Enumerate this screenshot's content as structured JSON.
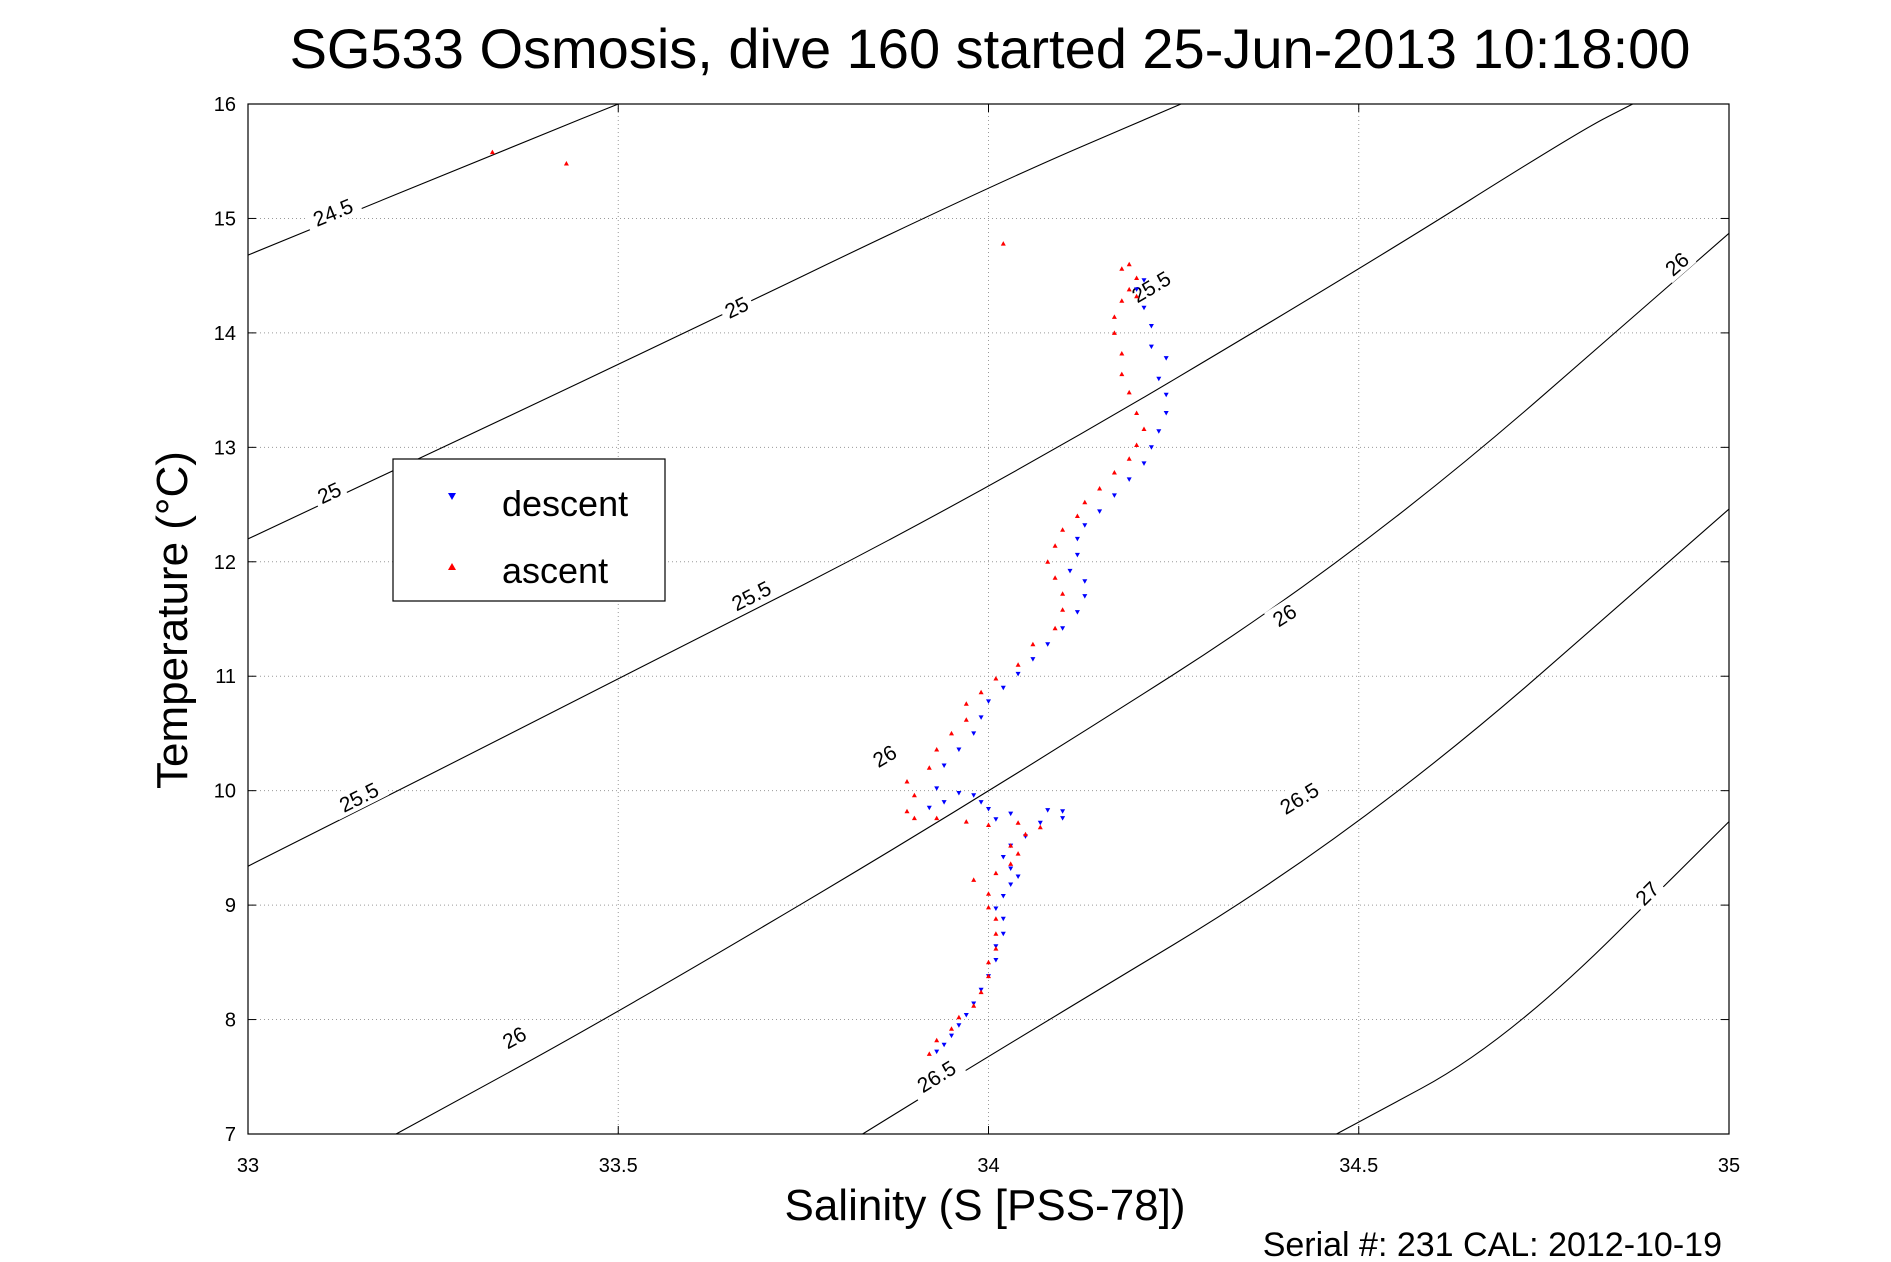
{
  "chart_data": {
    "type": "scatter",
    "title": "SG533 Osmosis, dive 160 started 25-Jun-2013 10:18:00",
    "xlabel": "Salinity (S [PSS-78])",
    "ylabel": "Temperature (°C)",
    "xlim": [
      33,
      35
    ],
    "ylim": [
      7,
      16
    ],
    "xticks": [
      33,
      33.5,
      34,
      34.5,
      35
    ],
    "xtick_labels": [
      "33",
      "33.5",
      "34",
      "34.5",
      "35"
    ],
    "yticks": [
      7,
      8,
      9,
      10,
      11,
      12,
      13,
      14,
      15,
      16
    ],
    "ytick_labels": [
      "7",
      "8",
      "9",
      "10",
      "11",
      "12",
      "13",
      "14",
      "15",
      "16"
    ],
    "grid": true,
    "legend": {
      "placement": "center-left",
      "entries": [
        "descent",
        "ascent"
      ]
    },
    "footer": "Serial #: 231  CAL: 2012-10-19",
    "colors": {
      "descent": "#0000ff",
      "ascent": "#ff0000",
      "contour": "#000000",
      "grid": "#9a9a9a"
    },
    "contours": [
      {
        "label": "24.5",
        "points": [
          [
            33.0,
            14.68
          ],
          [
            33.4,
            15.74
          ],
          [
            33.5,
            16.0
          ]
        ],
        "label_positions": [
          [
            33.115,
            15.05
          ]
        ]
      },
      {
        "label": "25",
        "points": [
          [
            33.0,
            12.2
          ],
          [
            33.5,
            13.72
          ],
          [
            34.0,
            15.28
          ],
          [
            34.26,
            16.0
          ]
        ],
        "label_positions": [
          [
            33.11,
            12.6
          ],
          [
            33.66,
            14.22
          ]
        ]
      },
      {
        "label": "25.5",
        "points": [
          [
            33.0,
            9.34
          ],
          [
            33.5,
            10.97
          ],
          [
            34.0,
            12.63
          ],
          [
            34.5,
            14.55
          ],
          [
            34.8,
            15.77
          ],
          [
            34.87,
            16.0
          ]
        ],
        "label_positions": [
          [
            33.15,
            9.94
          ],
          [
            33.68,
            11.7
          ],
          [
            34.22,
            14.4
          ]
        ]
      },
      {
        "label": "26",
        "points": [
          [
            33.2,
            7.0
          ],
          [
            33.5,
            8.06
          ],
          [
            34.0,
            9.98
          ],
          [
            34.5,
            12.05
          ],
          [
            35.0,
            14.87
          ]
        ],
        "label_positions": [
          [
            33.36,
            7.84
          ],
          [
            33.86,
            10.3
          ],
          [
            34.4,
            11.53
          ],
          [
            34.93,
            14.6
          ]
        ]
      },
      {
        "label": "26.5",
        "points": [
          [
            33.83,
            7.0
          ],
          [
            34.0,
            7.68
          ],
          [
            34.5,
            9.63
          ],
          [
            35.0,
            12.46
          ]
        ],
        "label_positions": [
          [
            33.93,
            7.5
          ],
          [
            34.42,
            9.93
          ]
        ]
      },
      {
        "label": "27",
        "points": [
          [
            34.47,
            7.0
          ],
          [
            34.7,
            7.8
          ],
          [
            35.0,
            9.73
          ]
        ],
        "label_positions": [
          [
            34.89,
            9.1
          ]
        ]
      }
    ],
    "series": [
      {
        "name": "descent",
        "marker": "triangle-down",
        "points": [
          [
            33.93,
            7.72
          ],
          [
            33.94,
            7.78
          ],
          [
            33.95,
            7.86
          ],
          [
            33.96,
            7.95
          ],
          [
            33.97,
            8.04
          ],
          [
            33.98,
            8.14
          ],
          [
            33.99,
            8.26
          ],
          [
            34.0,
            8.38
          ],
          [
            34.01,
            8.52
          ],
          [
            34.01,
            8.64
          ],
          [
            34.02,
            8.75
          ],
          [
            34.02,
            8.88
          ],
          [
            34.01,
            8.97
          ],
          [
            34.02,
            9.08
          ],
          [
            34.03,
            9.18
          ],
          [
            34.04,
            9.25
          ],
          [
            34.03,
            9.32
          ],
          [
            34.02,
            9.42
          ],
          [
            34.03,
            9.52
          ],
          [
            34.05,
            9.6
          ],
          [
            34.07,
            9.72
          ],
          [
            34.1,
            9.76
          ],
          [
            34.1,
            9.82
          ],
          [
            34.08,
            9.83
          ],
          [
            34.03,
            9.8
          ],
          [
            34.01,
            9.75
          ],
          [
            34.0,
            9.84
          ],
          [
            33.99,
            9.9
          ],
          [
            33.98,
            9.96
          ],
          [
            33.96,
            9.98
          ],
          [
            33.94,
            9.9
          ],
          [
            33.92,
            9.85
          ],
          [
            33.93,
            10.02
          ],
          [
            33.94,
            10.22
          ],
          [
            33.96,
            10.36
          ],
          [
            33.98,
            10.5
          ],
          [
            33.99,
            10.64
          ],
          [
            34.0,
            10.78
          ],
          [
            34.02,
            10.9
          ],
          [
            34.04,
            11.02
          ],
          [
            34.06,
            11.15
          ],
          [
            34.08,
            11.28
          ],
          [
            34.1,
            11.42
          ],
          [
            34.12,
            11.56
          ],
          [
            34.13,
            11.7
          ],
          [
            34.13,
            11.83
          ],
          [
            34.11,
            11.92
          ],
          [
            34.12,
            12.06
          ],
          [
            34.12,
            12.2
          ],
          [
            34.13,
            12.32
          ],
          [
            34.15,
            12.44
          ],
          [
            34.17,
            12.58
          ],
          [
            34.19,
            12.72
          ],
          [
            34.21,
            12.86
          ],
          [
            34.22,
            13.0
          ],
          [
            34.23,
            13.14
          ],
          [
            34.24,
            13.3
          ],
          [
            34.24,
            13.46
          ],
          [
            34.23,
            13.6
          ],
          [
            34.24,
            13.78
          ],
          [
            34.22,
            13.88
          ],
          [
            34.22,
            14.06
          ],
          [
            34.21,
            14.22
          ],
          [
            34.2,
            14.38
          ],
          [
            34.21,
            14.46
          ]
        ]
      },
      {
        "name": "ascent",
        "marker": "triangle-up",
        "points": [
          [
            33.33,
            15.58
          ],
          [
            33.43,
            15.48
          ],
          [
            34.02,
            14.78
          ],
          [
            33.92,
            7.7
          ],
          [
            33.93,
            7.82
          ],
          [
            33.95,
            7.92
          ],
          [
            33.96,
            8.02
          ],
          [
            33.98,
            8.12
          ],
          [
            33.99,
            8.24
          ],
          [
            34.0,
            8.38
          ],
          [
            34.0,
            8.5
          ],
          [
            34.01,
            8.62
          ],
          [
            34.01,
            8.75
          ],
          [
            34.01,
            8.88
          ],
          [
            34.0,
            8.98
          ],
          [
            34.0,
            9.1
          ],
          [
            33.98,
            9.22
          ],
          [
            34.01,
            9.28
          ],
          [
            34.03,
            9.36
          ],
          [
            34.04,
            9.45
          ],
          [
            34.03,
            9.52
          ],
          [
            34.05,
            9.62
          ],
          [
            34.07,
            9.68
          ],
          [
            34.04,
            9.72
          ],
          [
            34.0,
            9.7
          ],
          [
            33.97,
            9.73
          ],
          [
            33.93,
            9.76
          ],
          [
            33.9,
            9.76
          ],
          [
            33.89,
            9.82
          ],
          [
            33.9,
            9.96
          ],
          [
            33.89,
            10.08
          ],
          [
            33.92,
            10.2
          ],
          [
            33.93,
            10.36
          ],
          [
            33.95,
            10.5
          ],
          [
            33.97,
            10.62
          ],
          [
            33.97,
            10.76
          ],
          [
            33.99,
            10.86
          ],
          [
            34.01,
            10.98
          ],
          [
            34.04,
            11.1
          ],
          [
            34.06,
            11.28
          ],
          [
            34.09,
            11.42
          ],
          [
            34.1,
            11.58
          ],
          [
            34.1,
            11.72
          ],
          [
            34.09,
            11.86
          ],
          [
            34.08,
            12.0
          ],
          [
            34.09,
            12.14
          ],
          [
            34.1,
            12.28
          ],
          [
            34.12,
            12.4
          ],
          [
            34.13,
            12.52
          ],
          [
            34.15,
            12.64
          ],
          [
            34.17,
            12.78
          ],
          [
            34.19,
            12.9
          ],
          [
            34.2,
            13.02
          ],
          [
            34.21,
            13.16
          ],
          [
            34.2,
            13.3
          ],
          [
            34.19,
            13.48
          ],
          [
            34.18,
            13.64
          ],
          [
            34.18,
            13.82
          ],
          [
            34.17,
            14.0
          ],
          [
            34.17,
            14.14
          ],
          [
            34.18,
            14.28
          ],
          [
            34.19,
            14.38
          ],
          [
            34.18,
            14.56
          ],
          [
            34.19,
            14.6
          ],
          [
            34.2,
            14.48
          ],
          [
            34.2,
            14.32
          ]
        ]
      }
    ]
  }
}
